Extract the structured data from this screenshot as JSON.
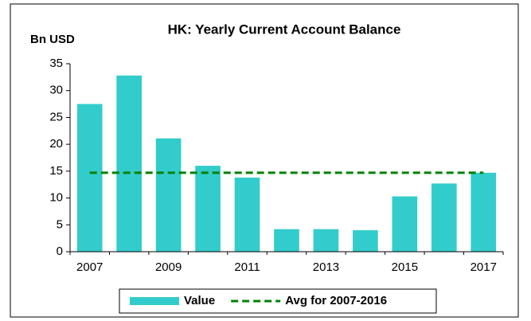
{
  "chart_data": {
    "type": "bar",
    "title": "HK: Yearly Current Account Balance",
    "ylabel": "Bn USD",
    "categories": [
      "2007",
      null,
      "2009",
      null,
      "2011",
      null,
      "2013",
      null,
      "2015",
      null,
      "2017"
    ],
    "series": [
      {
        "name": "Value",
        "type": "bar",
        "color": "#33cccc",
        "values": [
          27.5,
          32.8,
          21.1,
          16.0,
          13.8,
          4.2,
          4.2,
          4.0,
          10.3,
          12.7,
          14.7
        ]
      },
      {
        "name": "Avg for 2007-2016",
        "type": "line",
        "color": "#008000",
        "dashed": true,
        "values": [
          14.7,
          14.7,
          14.7,
          14.7,
          14.7,
          14.7,
          14.7,
          14.7,
          14.7,
          14.7,
          14.7
        ]
      }
    ],
    "ylim": [
      0,
      35
    ],
    "yticks": [
      0,
      5,
      10,
      15,
      20,
      25,
      30,
      35
    ],
    "grid": false,
    "legend": "bottom"
  }
}
